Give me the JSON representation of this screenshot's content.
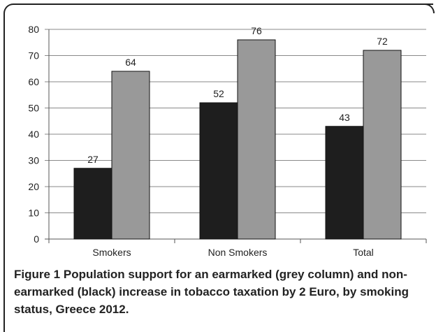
{
  "chart_data": {
    "type": "bar",
    "categories": [
      "Smokers",
      "Non Smokers",
      "Total"
    ],
    "series": [
      {
        "color": "#1e1e1e",
        "values": [
          27,
          52,
          43
        ]
      },
      {
        "color": "#999999",
        "values": [
          64,
          76,
          72
        ]
      }
    ],
    "ylim": [
      0,
      80
    ],
    "yticks": [
      0,
      10,
      20,
      30,
      40,
      50,
      60,
      70,
      80
    ],
    "grid": true
  },
  "caption": {
    "label": "Figure 1",
    "text": "Population support for an earmarked (grey column) and non-earmarked (black) increase in tobacco taxation by 2 Euro, by smoking status, Greece 2012."
  }
}
